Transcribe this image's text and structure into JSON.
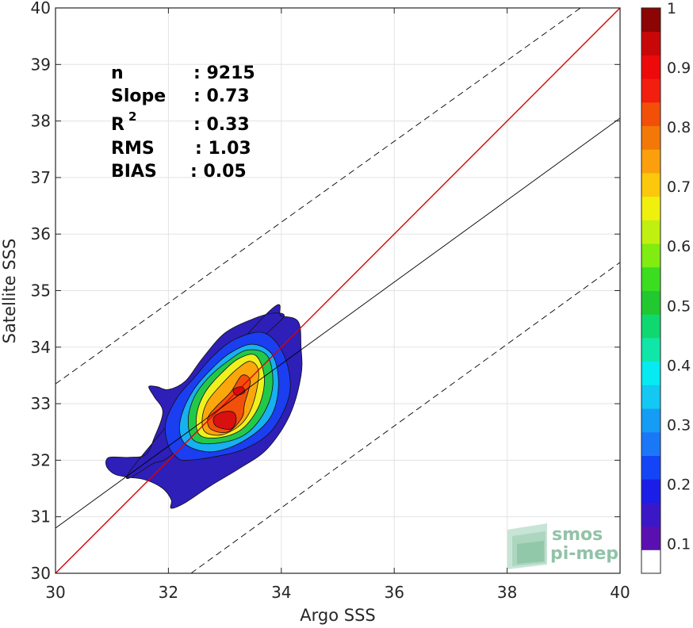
{
  "chart_data": {
    "type": "contour-scatter",
    "xlabel": "Argo SSS",
    "ylabel": "Satellite SSS",
    "xlim": [
      30,
      40
    ],
    "ylim": [
      30,
      40
    ],
    "xticks": [
      "30",
      "32",
      "34",
      "36",
      "38",
      "40"
    ],
    "yticks": [
      "30",
      "31",
      "32",
      "33",
      "34",
      "35",
      "36",
      "37",
      "38",
      "39",
      "40"
    ],
    "grid": true,
    "stats": {
      "n_label": "n",
      "n_value": ": 9215",
      "slope_label": "Slope",
      "slope_value": ": 0.73",
      "r2_label": "R",
      "r2_sup": "2",
      "r2_value": ": 0.33",
      "rms_label": "RMS",
      "rms_value": ": 1.03",
      "bias_label": "BIAS",
      "bias_value": ": 0.05"
    },
    "lines": [
      {
        "role": "identity",
        "color": "#e00000",
        "x": [
          30,
          40
        ],
        "y": [
          30,
          40
        ]
      },
      {
        "role": "regression",
        "color": "#000000",
        "x": [
          30,
          40
        ],
        "y": [
          30.8,
          38.05
        ]
      },
      {
        "role": "upper-bound",
        "color": "#000000",
        "dashed": true,
        "x": [
          30,
          39.3
        ],
        "y": [
          33.35,
          40
        ]
      },
      {
        "role": "lower-bound",
        "color": "#000000",
        "dashed": true,
        "x": [
          32.4,
          40
        ],
        "y": [
          30,
          35.5
        ]
      }
    ],
    "density_center": [
      33.0,
      32.7
    ],
    "contour_levels": [
      {
        "level": 0.05,
        "color": "#2e1fb8",
        "points": [
          [
            31.35,
            31.85
          ],
          [
            31.75,
            31.95
          ],
          [
            32.0,
            32.05
          ],
          [
            32.35,
            32.4
          ],
          [
            32.55,
            32.85
          ],
          [
            32.85,
            33.3
          ],
          [
            33.35,
            33.85
          ],
          [
            33.75,
            34.25
          ],
          [
            34.05,
            34.55
          ],
          [
            33.85,
            34.6
          ],
          [
            33.5,
            34.5
          ],
          [
            33.0,
            34.25
          ],
          [
            32.6,
            33.8
          ],
          [
            32.3,
            33.4
          ],
          [
            32.0,
            33.25
          ],
          [
            31.8,
            33.3
          ],
          [
            31.65,
            33.3
          ],
          [
            31.75,
            33.12
          ],
          [
            31.9,
            32.85
          ],
          [
            31.75,
            32.4
          ],
          [
            31.6,
            32.1
          ],
          [
            31.3,
            32.05
          ],
          [
            30.95,
            32.05
          ],
          [
            30.9,
            31.9
          ],
          [
            31.05,
            31.75
          ],
          [
            31.3,
            31.7
          ],
          [
            31.6,
            31.65
          ],
          [
            31.9,
            31.5
          ],
          [
            32.05,
            31.3
          ],
          [
            32.05,
            31.15
          ],
          [
            32.3,
            31.25
          ],
          [
            32.75,
            31.55
          ],
          [
            33.25,
            31.85
          ],
          [
            33.75,
            32.2
          ],
          [
            34.15,
            32.8
          ],
          [
            34.35,
            33.5
          ],
          [
            34.35,
            34.0
          ],
          [
            34.3,
            34.45
          ],
          [
            34.0,
            34.55
          ],
          [
            33.7,
            34.55
          ]
        ]
      },
      {
        "level": 0.2,
        "color": "#1a3ef0",
        "points": [
          [
            32.3,
            32.0
          ],
          [
            32.75,
            32.05
          ],
          [
            33.35,
            32.2
          ],
          [
            33.85,
            32.55
          ],
          [
            34.15,
            33.2
          ],
          [
            34.05,
            33.85
          ],
          [
            33.7,
            34.25
          ],
          [
            33.2,
            34.15
          ],
          [
            32.8,
            33.85
          ],
          [
            32.45,
            33.45
          ],
          [
            32.15,
            33.1
          ],
          [
            31.95,
            32.65
          ],
          [
            32.0,
            32.25
          ],
          [
            32.15,
            32.05
          ]
        ]
      },
      {
        "level": 0.35,
        "color": "#17b0f0",
        "points": [
          [
            32.35,
            32.25
          ],
          [
            32.8,
            32.15
          ],
          [
            33.35,
            32.35
          ],
          [
            33.8,
            32.75
          ],
          [
            33.95,
            33.3
          ],
          [
            33.85,
            33.85
          ],
          [
            33.5,
            34.05
          ],
          [
            33.1,
            33.9
          ],
          [
            32.75,
            33.6
          ],
          [
            32.45,
            33.25
          ],
          [
            32.25,
            32.85
          ],
          [
            32.2,
            32.5
          ]
        ]
      },
      {
        "level": 0.5,
        "color": "#22c84a",
        "points": [
          [
            32.45,
            32.35
          ],
          [
            32.85,
            32.3
          ],
          [
            33.35,
            32.45
          ],
          [
            33.7,
            32.85
          ],
          [
            33.85,
            33.35
          ],
          [
            33.75,
            33.85
          ],
          [
            33.4,
            33.95
          ],
          [
            33.05,
            33.75
          ],
          [
            32.7,
            33.45
          ],
          [
            32.45,
            33.1
          ],
          [
            32.35,
            32.7
          ]
        ]
      },
      {
        "level": 0.65,
        "color": "#f0f01e",
        "points": [
          [
            32.55,
            32.45
          ],
          [
            32.9,
            32.4
          ],
          [
            33.3,
            32.55
          ],
          [
            33.6,
            32.95
          ],
          [
            33.7,
            33.45
          ],
          [
            33.55,
            33.85
          ],
          [
            33.25,
            33.8
          ],
          [
            32.95,
            33.55
          ],
          [
            32.65,
            33.2
          ],
          [
            32.5,
            32.8
          ]
        ]
      },
      {
        "level": 0.75,
        "color": "#fba60c",
        "points": [
          [
            32.65,
            32.5
          ],
          [
            32.95,
            32.45
          ],
          [
            33.3,
            32.65
          ],
          [
            33.5,
            33.0
          ],
          [
            33.6,
            33.55
          ],
          [
            33.45,
            33.75
          ],
          [
            33.2,
            33.6
          ],
          [
            32.95,
            33.35
          ],
          [
            32.7,
            33.05
          ],
          [
            32.6,
            32.75
          ]
        ]
      },
      {
        "level": 0.85,
        "color": "#f2500a",
        "points": [
          [
            32.75,
            32.55
          ],
          [
            33.05,
            32.5
          ],
          [
            33.3,
            32.75
          ],
          [
            33.35,
            33.0
          ],
          [
            33.45,
            33.4
          ],
          [
            33.3,
            33.5
          ],
          [
            33.1,
            33.2
          ],
          [
            32.85,
            32.95
          ],
          [
            32.7,
            32.75
          ]
        ]
      },
      {
        "level": 0.92,
        "color": "#d81010",
        "points": [
          [
            32.85,
            32.6
          ],
          [
            33.1,
            32.55
          ],
          [
            33.2,
            32.7
          ],
          [
            33.15,
            32.85
          ],
          [
            32.95,
            32.85
          ],
          [
            32.8,
            32.75
          ]
        ]
      },
      {
        "level": 0.92,
        "color": "#d81010",
        "points": [
          [
            33.2,
            33.15
          ],
          [
            33.35,
            33.2
          ],
          [
            33.3,
            33.3
          ],
          [
            33.15,
            33.25
          ]
        ]
      }
    ],
    "colorbar": {
      "ticks": [
        "0.1",
        "0.2",
        "0.3",
        "0.4",
        "0.5",
        "0.6",
        "0.7",
        "0.8",
        "0.9",
        "1"
      ],
      "colors": [
        "#ffffff",
        "#5a10b0",
        "#3a18c8",
        "#1a1ee6",
        "#1444f8",
        "#1a78f8",
        "#159cf4",
        "#13c8f2",
        "#06eaf2",
        "#10e6a8",
        "#10d870",
        "#22c830",
        "#3cdc20",
        "#80ec10",
        "#c0f010",
        "#f0f00e",
        "#fbc80c",
        "#fba00c",
        "#f47808",
        "#f25008",
        "#f21e0e",
        "#ee0a0a",
        "#c80808",
        "#8c0404"
      ]
    },
    "watermark": {
      "line1": "smos",
      "line2": "pi-mep"
    }
  }
}
